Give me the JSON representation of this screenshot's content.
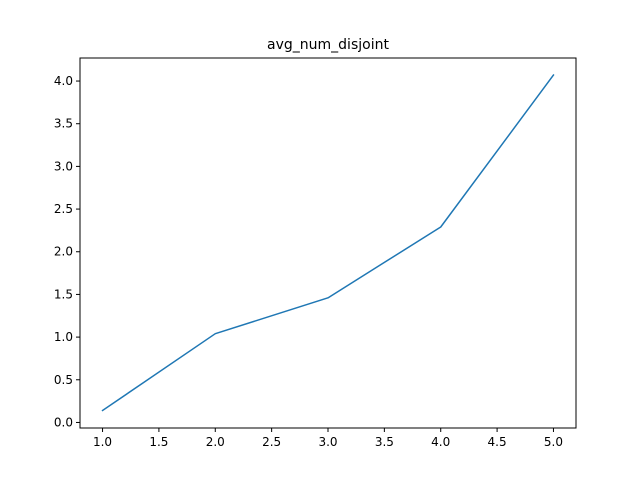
{
  "chart_data": {
    "type": "line",
    "title": "avg_num_disjoint",
    "xlabel": "",
    "ylabel": "",
    "xlim": [
      0.8,
      5.2
    ],
    "ylim": [
      -0.065,
      4.27
    ],
    "x_ticks": [
      1.0,
      1.5,
      2.0,
      2.5,
      3.0,
      3.5,
      4.0,
      4.5,
      5.0
    ],
    "x_tick_labels": [
      "1.0",
      "1.5",
      "2.0",
      "2.5",
      "3.0",
      "3.5",
      "4.0",
      "4.5",
      "5.0"
    ],
    "y_ticks": [
      0.0,
      0.5,
      1.0,
      1.5,
      2.0,
      2.5,
      3.0,
      3.5,
      4.0
    ],
    "y_tick_labels": [
      "0.0",
      "0.5",
      "1.0",
      "1.5",
      "2.0",
      "2.5",
      "3.0",
      "3.5",
      "4.0"
    ],
    "grid": false,
    "series": [
      {
        "x": [
          1.0,
          2.0,
          3.0,
          4.0,
          5.0
        ],
        "values": [
          0.14,
          1.04,
          1.46,
          2.29,
          4.07
        ],
        "color": "#1f77b4"
      }
    ]
  }
}
